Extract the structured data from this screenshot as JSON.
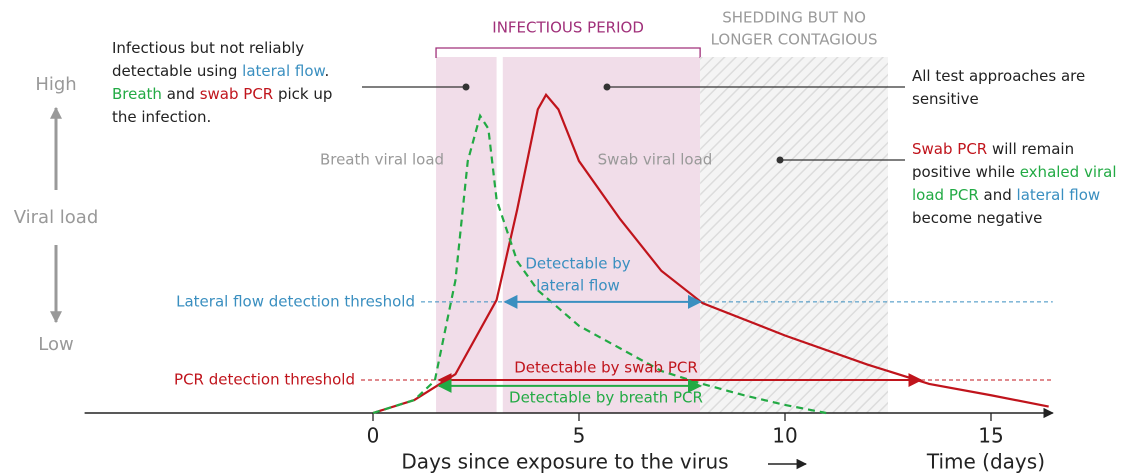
{
  "chart_data": {
    "type": "line",
    "xlabel": "Days since exposure to the virus",
    "xlabel_right": "Time (days)",
    "ylabel": "Viral load",
    "y_high": "High",
    "y_low": "Low",
    "xlim": [
      -7,
      16.5
    ],
    "xticks": [
      0,
      5,
      10,
      15
    ],
    "ylim": [
      0,
      100
    ],
    "series": [
      {
        "name": "Swab viral load",
        "color": "#c0141c",
        "dashed": false,
        "x": [
          0,
          1,
          2,
          3,
          3.5,
          4,
          4.2,
          4.5,
          5,
          6,
          7,
          8,
          10,
          12,
          13.5,
          15,
          16.4
        ],
        "values": [
          0,
          4,
          12,
          35,
          63,
          94,
          98.5,
          94,
          78,
          60,
          44,
          34,
          24,
          15,
          9,
          5.5,
          2
        ]
      },
      {
        "name": "Breath viral load",
        "color": "#22aa44",
        "dashed": true,
        "x": [
          0,
          1,
          1.5,
          2,
          2.3,
          2.6,
          2.8,
          3,
          3.5,
          4,
          5,
          6,
          7,
          8,
          9,
          10,
          11
        ],
        "values": [
          0,
          4,
          10,
          41,
          78,
          92,
          88,
          66,
          47,
          38,
          27,
          20,
          13,
          9,
          5.5,
          2.5,
          0
        ]
      }
    ],
    "thresholds": [
      {
        "label": "Lateral flow detection threshold",
        "value": 34.4,
        "color": "#3a8fc0"
      },
      {
        "label": "PCR detection threshold",
        "value": 10.2,
        "color": "#c0141c"
      }
    ],
    "detection_ranges": [
      {
        "label": [
          "Detectable by",
          "lateral flow"
        ],
        "start": 3.2,
        "end": 7.95,
        "level": 34.4,
        "color": "#3a8fc0"
      },
      {
        "label": [
          "Detectable by swab PCR"
        ],
        "start": 1.6,
        "end": 13.3,
        "level": 10.2,
        "color": "#c0141c"
      },
      {
        "label": [
          "Detectable by breath PCR"
        ],
        "start": 1.6,
        "end": 7.95,
        "level": 8.4,
        "color": "#22aa44"
      }
    ],
    "regions": [
      {
        "label": [
          "INFECTIOUS PERIOD"
        ],
        "start": 1.53,
        "end": 7.94,
        "gap": [
          3.0,
          3.15
        ],
        "color": "#a0307a"
      },
      {
        "label": [
          "SHEDDING BUT NO",
          "LONGER CONTAGIOUS"
        ],
        "start": 7.94,
        "end": 12.5,
        "color": "#9a9a9a"
      }
    ],
    "annotations": [
      {
        "lines": [
          [
            {
              "text": "Infectious but not reliably",
              "color": "#222222"
            }
          ],
          [
            {
              "text": "detectable using ",
              "color": "#222222"
            },
            {
              "text": "lateral flow",
              "color": "#3a8fc0"
            },
            {
              "text": ".",
              "color": "#222222"
            }
          ],
          [
            {
              "text": "Breath",
              "color": "#22aa44"
            },
            {
              "text": " and ",
              "color": "#222222"
            },
            {
              "text": "swab PCR",
              "color": "#c0141c"
            },
            {
              "text": " pick up",
              "color": "#222222"
            }
          ],
          [
            {
              "text": "the infection.",
              "color": "#222222"
            }
          ]
        ]
      },
      {
        "lines": [
          [
            {
              "text": "All test approaches are",
              "color": "#222222"
            }
          ],
          [
            {
              "text": "sensitive",
              "color": "#222222"
            }
          ]
        ]
      },
      {
        "lines": [
          [
            {
              "text": "Swab PCR",
              "color": "#c0141c"
            },
            {
              "text": " will remain",
              "color": "#222222"
            }
          ],
          [
            {
              "text": "positive while ",
              "color": "#222222"
            },
            {
              "text": "exhaled viral",
              "color": "#22aa44"
            }
          ],
          [
            {
              "text": "load PCR",
              "color": "#22aa44"
            },
            {
              "text": " and ",
              "color": "#222222"
            },
            {
              "text": "lateral flow",
              "color": "#3a8fc0"
            }
          ],
          [
            {
              "text": "become negative",
              "color": "#222222"
            }
          ]
        ]
      }
    ]
  }
}
